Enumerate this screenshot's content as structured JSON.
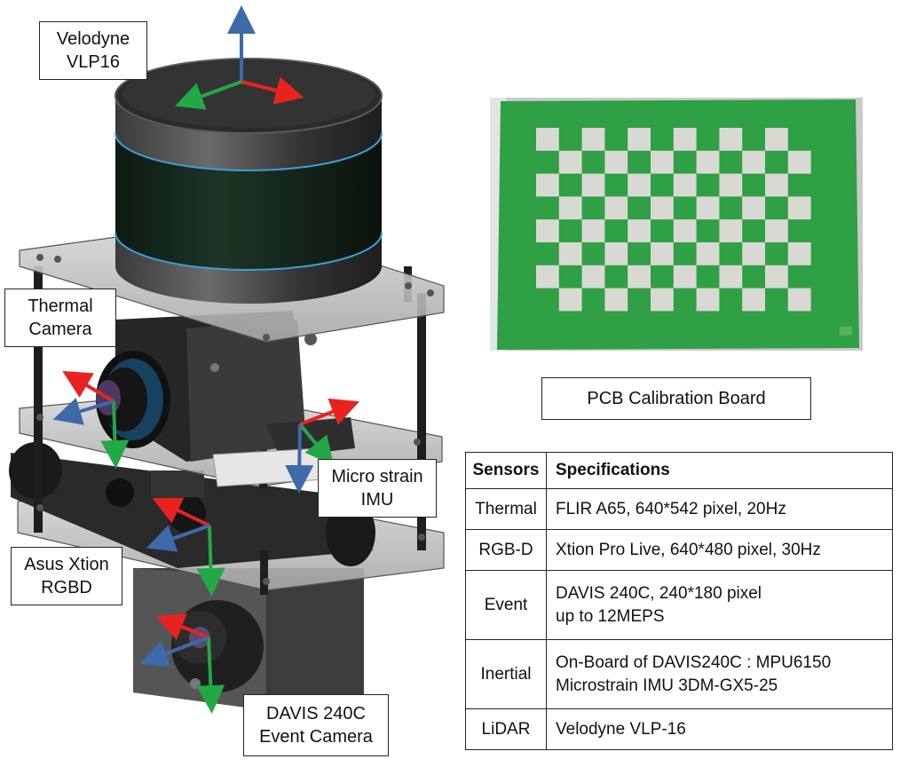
{
  "labels": {
    "velodyne": "Velodyne\nVLP16",
    "thermal": "Thermal\nCamera",
    "imu": "Micro strain\nIMU",
    "asus": "Asus Xtion\nRGBD",
    "davis": "DAVIS 240C\nEvent Camera",
    "pcb": "PCB Calibration Board"
  },
  "table": {
    "headers": [
      "Sensors",
      "Specifications"
    ],
    "rows": [
      {
        "sensor": "Thermal",
        "spec": "FLIR A65, 640*542 pixel, 20Hz"
      },
      {
        "sensor": "RGB-D",
        "spec": "Xtion Pro Live, 640*480 pixel, 30Hz"
      },
      {
        "sensor": "Event",
        "spec": "DAVIS 240C, 240*180 pixel\nup to 12MEPS"
      },
      {
        "sensor": "Inertial",
        "spec": "On-Board of DAVIS240C : MPU6150\nMicrostrain IMU 3DM-GX5-25"
      },
      {
        "sensor": "LiDAR",
        "spec": "Velodyne VLP-16"
      }
    ]
  },
  "colors": {
    "axis_x": "#e8231f",
    "axis_y": "#22a845",
    "axis_z": "#3d6aa8",
    "board_green": "#2fa043",
    "board_square": "#d9d9d4"
  }
}
